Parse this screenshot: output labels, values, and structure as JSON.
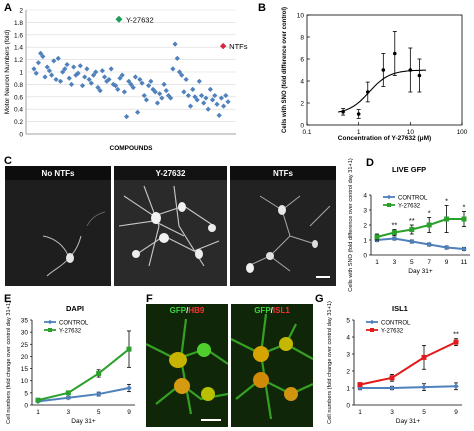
{
  "panels": {
    "A": "A",
    "B": "B",
    "C": "C",
    "D": "D",
    "E": "E",
    "F": "F",
    "G": "G"
  },
  "micrographs": {
    "no_ntfs": "No NTFs",
    "y27632": "Y-27632",
    "ntfs": "NTFs"
  },
  "fluorescence": {
    "left": {
      "a": "GFP",
      "sep": "/",
      "b": "HB9"
    },
    "right": {
      "a": "GFP",
      "sep": "/",
      "b": "ISL1"
    }
  },
  "colors": {
    "control": "#4f81bd",
    "y27632": "#2ca02c",
    "y27632_g": "#e31a1c",
    "scatter": "#4f81bd",
    "highlight": "#1a9e5a",
    "ntf_marker": "#d7263d"
  },
  "chart_data": [
    {
      "id": "A",
      "type": "scatter",
      "title": "",
      "xlabel": "COMPOUNDS",
      "ylabel": "Motor Neuron Numbers (fold)",
      "ylim": [
        0,
        2
      ],
      "yticks": [
        "0",
        "0.2",
        "0.4",
        "0.6",
        "0.8",
        "1",
        "1.2",
        "1.4",
        "1.6",
        "1.8",
        "2"
      ],
      "grid": true,
      "values": [
        1.05,
        0.98,
        1.15,
        1.3,
        1.25,
        0.92,
        1.08,
        1.02,
        0.95,
        1.18,
        0.88,
        1.22,
        0.85,
        1.0,
        1.05,
        1.12,
        0.9,
        0.8,
        1.08,
        0.95,
        0.98,
        1.1,
        0.78,
        0.92,
        1.05,
        0.88,
        0.82,
        0.95,
        1.0,
        0.75,
        0.7,
        1.02,
        0.92,
        0.85,
        0.88,
        1.05,
        0.8,
        0.78,
        0.72,
        0.9,
        0.95,
        0.68,
        0.28,
        0.85,
        0.8,
        0.75,
        0.92,
        0.35,
        0.88,
        0.82,
        0.62,
        0.55,
        0.78,
        0.85,
        0.72,
        0.68,
        0.5,
        0.65,
        0.58,
        0.8,
        0.7,
        0.62,
        0.58,
        1.05,
        1.45,
        1.22,
        1.0,
        0.95,
        0.68,
        0.88,
        0.62,
        0.45,
        0.72,
        0.6,
        0.55,
        0.85,
        0.62,
        0.5,
        0.58,
        0.4,
        0.72,
        0.55,
        0.62,
        0.48,
        0.3,
        0.58,
        0.45,
        0.62,
        0.52
      ],
      "annotations": [
        {
          "label": "Y-27632",
          "value": 1.85,
          "index": 34
        },
        {
          "label": "NTFs",
          "value": 1.45,
          "index": 84
        }
      ]
    },
    {
      "id": "B",
      "type": "line",
      "xscale": "log",
      "xlabel": "Concentration of Y-27632 (μM)",
      "ylabel": "Cells with SNO (fold difference over control)",
      "xlim": [
        0.1,
        100
      ],
      "ylim": [
        0,
        10
      ],
      "xticks": [
        "0.1",
        "1",
        "10",
        "100"
      ],
      "yticks": [
        "0",
        "2",
        "4",
        "6",
        "8",
        "10"
      ],
      "points": {
        "x": [
          0.5,
          1,
          1.5,
          3,
          5,
          10,
          15
        ],
        "y": [
          1.2,
          1.0,
          3.0,
          5.0,
          6.5,
          5.0,
          4.5
        ],
        "err": [
          0.3,
          0.4,
          0.9,
          1.5,
          2.0,
          2.0,
          1.5
        ]
      },
      "fit": {
        "bottom": 1.0,
        "top": 5.0,
        "ec50": 1.6,
        "hill": 2.2
      }
    },
    {
      "id": "D",
      "type": "line",
      "title": "LIVE GFP",
      "xlabel": "Day 31+",
      "ylabel": "Cells with SNO (fold difference over control day 31+1)",
      "categories": [
        "1",
        "3",
        "5",
        "7",
        "9",
        "11"
      ],
      "ylim": [
        0,
        4
      ],
      "yticks": [
        "0",
        "1",
        "2",
        "3",
        "4"
      ],
      "series": [
        {
          "name": "CONTROL",
          "values": [
            1.0,
            1.1,
            0.9,
            0.7,
            0.5,
            0.4
          ],
          "err": [
            0.1,
            0.1,
            0.1,
            0.1,
            0.1,
            0.1
          ]
        },
        {
          "name": "Y-27632",
          "values": [
            1.2,
            1.5,
            1.7,
            2.0,
            2.4,
            2.4
          ],
          "err": [
            0.2,
            0.2,
            0.3,
            0.5,
            0.9,
            0.5
          ]
        }
      ],
      "stars": [
        "",
        "**",
        "**",
        "*",
        "*",
        "*"
      ]
    },
    {
      "id": "E",
      "type": "line",
      "title": "DAPI",
      "xlabel": "Day 31+",
      "ylabel": "Cell numbers (fold change over control day 31+1)",
      "categories": [
        "1",
        "3",
        "5",
        "9"
      ],
      "ylim": [
        0,
        35
      ],
      "yticks": [
        "0",
        "5",
        "10",
        "15",
        "20",
        "25",
        "30",
        "35"
      ],
      "series": [
        {
          "name": "CONTROL",
          "values": [
            1.5,
            3.0,
            4.5,
            7.0
          ],
          "err": [
            0.3,
            0.5,
            0.8,
            1.5
          ]
        },
        {
          "name": "Y-27632",
          "values": [
            2.0,
            5.0,
            13.0,
            23.0
          ],
          "err": [
            0.5,
            0.8,
            1.5,
            7.5
          ]
        }
      ]
    },
    {
      "id": "G",
      "type": "line",
      "title": "ISL1",
      "xlabel": "Day 31+",
      "ylabel": "Cell numbers (fold change over control day 31+1)",
      "categories": [
        "1",
        "3",
        "5",
        "9"
      ],
      "ylim": [
        0,
        5
      ],
      "yticks": [
        "0",
        "1",
        "2",
        "3",
        "4",
        "5"
      ],
      "series": [
        {
          "name": "CONTROL",
          "values": [
            1.0,
            1.0,
            1.05,
            1.1
          ],
          "err": [
            0.1,
            0.1,
            0.2,
            0.2
          ]
        },
        {
          "name": "Y-27632",
          "values": [
            1.2,
            1.6,
            2.8,
            3.7
          ],
          "err": [
            0.1,
            0.2,
            0.7,
            0.2
          ]
        }
      ],
      "stars": [
        "",
        "",
        "",
        "**"
      ]
    }
  ]
}
